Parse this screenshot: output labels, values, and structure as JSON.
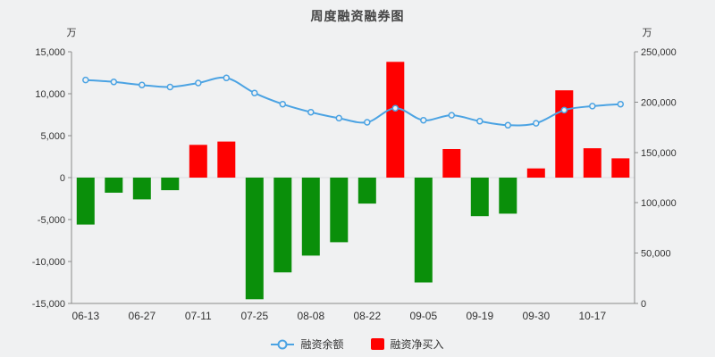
{
  "title": "周度融资融券图",
  "axes": {
    "left": {
      "unit": "万",
      "tick_values": [
        15000,
        10000,
        5000,
        0,
        -5000,
        -10000,
        -15000
      ],
      "tick_labels": [
        "15,000",
        "10,000",
        "5,000",
        "0",
        "-5,000",
        "-10,000",
        "-15,000"
      ]
    },
    "right": {
      "unit": "万",
      "tick_values": [
        250000,
        200000,
        150000,
        100000,
        50000,
        0
      ],
      "tick_labels": [
        "250,000",
        "200,000",
        "150,000",
        "100,000",
        "50,000",
        "0"
      ]
    }
  },
  "legend": [
    {
      "label": "融资余额",
      "type": "line",
      "color": "#4ba3e3"
    },
    {
      "label": "融资净买入",
      "type": "bar",
      "color": "#ff0000"
    }
  ],
  "colors": {
    "background": "#f0f1f2",
    "line": "#4ba3e3",
    "bar_positive": "#ff0000",
    "bar_negative": "#0a8f0a",
    "axis_line": "#8a8a8a",
    "tick_text": "#333333",
    "zero_line": "#dcdde0"
  },
  "chart_data": {
    "type": "combo",
    "n_points": 20,
    "x_tick_labels": [
      "06-13",
      "06-27",
      "07-11",
      "07-25",
      "08-08",
      "08-22",
      "09-05",
      "09-19",
      "09-30",
      "10-17"
    ],
    "x_tick_every": 2,
    "left_ylim": [
      -15000,
      15000
    ],
    "right_ylim": [
      0,
      250000
    ],
    "grid": false,
    "legend_position": "bottom",
    "series": [
      {
        "name": "融资余额",
        "type": "line",
        "yaxis": "right",
        "values": [
          222000,
          220000,
          217000,
          215000,
          219000,
          224000,
          209000,
          198000,
          190000,
          184000,
          180000,
          194000,
          182000,
          187000,
          181000,
          177000,
          179000,
          192000,
          196000,
          198000
        ]
      },
      {
        "name": "融资净买入",
        "type": "bar",
        "yaxis": "left",
        "values": [
          -5600,
          -1800,
          -2600,
          -1500,
          3900,
          4300,
          -14500,
          -11300,
          -9300,
          -7700,
          -3100,
          13800,
          -12500,
          3400,
          -4600,
          -4300,
          1100,
          10400,
          3500,
          2300
        ]
      }
    ]
  }
}
